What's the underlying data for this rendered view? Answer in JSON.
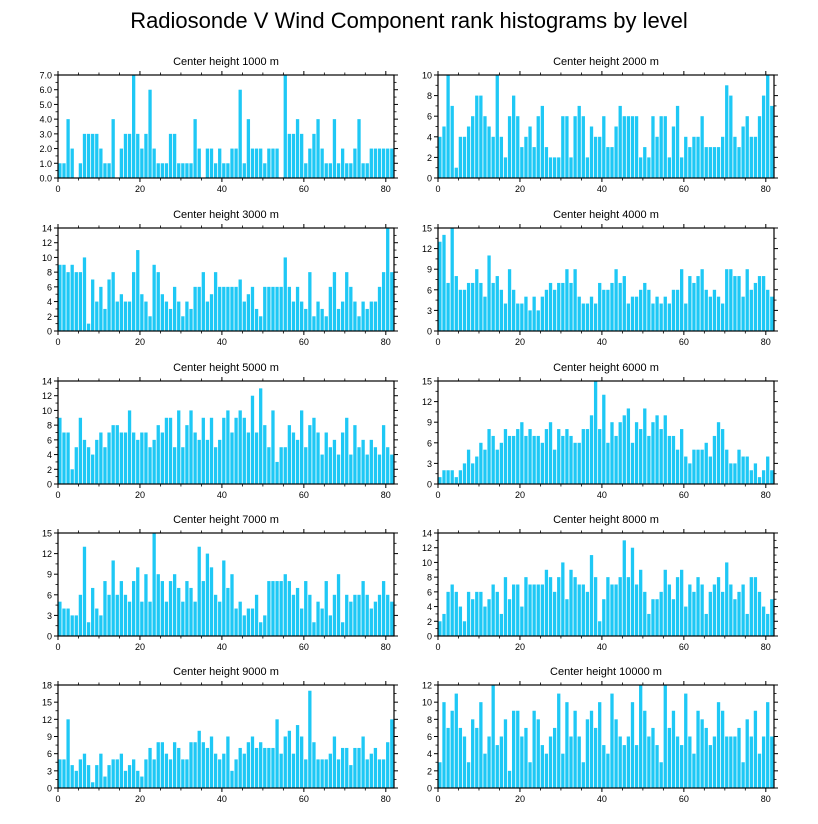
{
  "figure_title": "Radiosonde V Wind Component rank histograms by level",
  "bar_color": "#1ec8f5",
  "chart_data": [
    {
      "type": "bar",
      "title": "Center height 1000 m",
      "xlim": [
        0,
        82
      ],
      "ylim": [
        0,
        7
      ],
      "yticks": [
        0,
        1,
        2,
        3,
        4,
        5,
        6,
        7
      ],
      "ytick_labels": [
        "0.0",
        "1.0",
        "2.0",
        "3.0",
        "4.0",
        "5.0",
        "6.0",
        "7.0"
      ],
      "xticks": [
        0,
        20,
        40,
        60,
        80
      ],
      "xtick_labels": [
        "0",
        "20",
        "40",
        "60",
        "80"
      ],
      "values": [
        1,
        1,
        4,
        2,
        0,
        1,
        3,
        3,
        3,
        3,
        2,
        1,
        1,
        4,
        0,
        2,
        3,
        3,
        7,
        3,
        2,
        3,
        6,
        2,
        1,
        1,
        1,
        3,
        3,
        1,
        1,
        1,
        1,
        4,
        2,
        0,
        2,
        2,
        1,
        2,
        1,
        1,
        2,
        2,
        6,
        1,
        4,
        2,
        2,
        2,
        1,
        2,
        2,
        2,
        0,
        7,
        3,
        3,
        4,
        3,
        1,
        2,
        3,
        4,
        2,
        1,
        1,
        4,
        1,
        2,
        1,
        1,
        2,
        4,
        1,
        1,
        2,
        2,
        2,
        2,
        2,
        2
      ]
    },
    {
      "type": "bar",
      "title": "Center height 2000 m",
      "xlim": [
        0,
        82
      ],
      "ylim": [
        0,
        10
      ],
      "yticks": [
        0,
        2,
        4,
        6,
        8,
        10
      ],
      "ytick_labels": [
        "0",
        "2",
        "4",
        "6",
        "8",
        "10"
      ],
      "xticks": [
        0,
        20,
        40,
        60,
        80
      ],
      "xtick_labels": [
        "0",
        "20",
        "40",
        "60",
        "80"
      ],
      "values": [
        4,
        5,
        10,
        7,
        1,
        4,
        4,
        5,
        6,
        8,
        8,
        6,
        5,
        4,
        10,
        4,
        2,
        6,
        8,
        6,
        3,
        4,
        5,
        3,
        6,
        7,
        3,
        2,
        2,
        2,
        6,
        6,
        2,
        6,
        7,
        6,
        2,
        5,
        4,
        4,
        6,
        3,
        3,
        5,
        7,
        6,
        6,
        6,
        6,
        2,
        3,
        2,
        6,
        4,
        6,
        6,
        2,
        5,
        7,
        2,
        4,
        3,
        4,
        4,
        6,
        3,
        3,
        3,
        3,
        4,
        9,
        8,
        4,
        3,
        5,
        6,
        4,
        4,
        6,
        8,
        10,
        7
      ]
    },
    {
      "type": "bar",
      "title": "Center height 3000 m",
      "xlim": [
        0,
        82
      ],
      "ylim": [
        0,
        14
      ],
      "yticks": [
        0,
        2,
        4,
        6,
        8,
        10,
        12,
        14
      ],
      "ytick_labels": [
        "0",
        "2",
        "4",
        "6",
        "8",
        "10",
        "12",
        "14"
      ],
      "xticks": [
        0,
        20,
        40,
        60,
        80
      ],
      "xtick_labels": [
        "0",
        "20",
        "40",
        "60",
        "80"
      ],
      "values": [
        9,
        9,
        8,
        9,
        8,
        8,
        10,
        1,
        7,
        4,
        6,
        3,
        7,
        8,
        4,
        5,
        4,
        4,
        8,
        11,
        5,
        4,
        2,
        9,
        8,
        5,
        4,
        3,
        6,
        4,
        2,
        4,
        3,
        6,
        6,
        8,
        4,
        5,
        8,
        6,
        6,
        6,
        6,
        6,
        7,
        4,
        5,
        6,
        3,
        2,
        6,
        6,
        6,
        6,
        6,
        10,
        6,
        4,
        6,
        4,
        3,
        8,
        2,
        4,
        3,
        2,
        6,
        8,
        3,
        4,
        8,
        6,
        4,
        2,
        4,
        3,
        4,
        4,
        6,
        8,
        14,
        8
      ]
    },
    {
      "type": "bar",
      "title": "Center height 4000 m",
      "xlim": [
        0,
        82
      ],
      "ylim": [
        0,
        15
      ],
      "yticks": [
        0,
        3,
        6,
        9,
        12,
        15
      ],
      "ytick_labels": [
        "0",
        "3",
        "6",
        "9",
        "12",
        "15"
      ],
      "xticks": [
        0,
        20,
        40,
        60,
        80
      ],
      "xtick_labels": [
        "0",
        "20",
        "40",
        "60",
        "80"
      ],
      "values": [
        13,
        14,
        7,
        15,
        8,
        6,
        6,
        7,
        7,
        9,
        7,
        5,
        11,
        7,
        8,
        6,
        4,
        9,
        6,
        4,
        4,
        5,
        3,
        5,
        3,
        5,
        6,
        7,
        6,
        7,
        7,
        9,
        7,
        9,
        5,
        4,
        4,
        5,
        4,
        7,
        6,
        6,
        7,
        9,
        7,
        8,
        4,
        5,
        5,
        6,
        7,
        6,
        4,
        5,
        4,
        5,
        4,
        6,
        6,
        9,
        4,
        8,
        7,
        8,
        9,
        6,
        5,
        6,
        5,
        4,
        9,
        9,
        8,
        8,
        5,
        9,
        6,
        7,
        8,
        8,
        6,
        5
      ]
    },
    {
      "type": "bar",
      "title": "Center height 5000 m",
      "xlim": [
        0,
        82
      ],
      "ylim": [
        0,
        14
      ],
      "yticks": [
        0,
        2,
        4,
        6,
        8,
        10,
        12,
        14
      ],
      "ytick_labels": [
        "0",
        "2",
        "4",
        "6",
        "8",
        "10",
        "12",
        "14"
      ],
      "xticks": [
        0,
        20,
        40,
        60,
        80
      ],
      "xtick_labels": [
        "0",
        "20",
        "40",
        "60",
        "80"
      ],
      "values": [
        9,
        7,
        7,
        2,
        5,
        9,
        6,
        5,
        4,
        6,
        7,
        5,
        7,
        8,
        8,
        7,
        7,
        10,
        7,
        6,
        7,
        7,
        5,
        6,
        8,
        7,
        9,
        9,
        5,
        10,
        5,
        8,
        10,
        7,
        6,
        9,
        6,
        9,
        5,
        6,
        9,
        10,
        7,
        9,
        10,
        9,
        7,
        12,
        7,
        13,
        8,
        5,
        10,
        3,
        5,
        5,
        8,
        7,
        6,
        10,
        5,
        8,
        9,
        7,
        4,
        7,
        5,
        6,
        4,
        7,
        9,
        4,
        8,
        5,
        6,
        4,
        6,
        5,
        4,
        8,
        5,
        4
      ]
    },
    {
      "type": "bar",
      "title": "Center height 6000 m",
      "xlim": [
        0,
        82
      ],
      "ylim": [
        0,
        15
      ],
      "yticks": [
        0,
        3,
        6,
        9,
        12,
        15
      ],
      "ytick_labels": [
        "0",
        "3",
        "6",
        "9",
        "12",
        "15"
      ],
      "xticks": [
        0,
        20,
        40,
        60,
        80
      ],
      "xtick_labels": [
        "0",
        "20",
        "40",
        "60",
        "80"
      ],
      "values": [
        1,
        2,
        2,
        2,
        1,
        2,
        3,
        5,
        3,
        4,
        6,
        5,
        8,
        7,
        5,
        6,
        8,
        7,
        7,
        8,
        9,
        7,
        8,
        7,
        7,
        6,
        8,
        9,
        5,
        8,
        7,
        8,
        7,
        6,
        6,
        8,
        8,
        10,
        15,
        8,
        13,
        6,
        9,
        7,
        9,
        10,
        11,
        6,
        9,
        8,
        11,
        7,
        9,
        10,
        8,
        10,
        7,
        7,
        5,
        8,
        4,
        3,
        5,
        5,
        5,
        6,
        4,
        7,
        9,
        8,
        5,
        3,
        3,
        5,
        4,
        4,
        2,
        3,
        1,
        2,
        4,
        2
      ]
    },
    {
      "type": "bar",
      "title": "Center height 7000 m",
      "xlim": [
        0,
        82
      ],
      "ylim": [
        0,
        15
      ],
      "yticks": [
        0,
        3,
        6,
        9,
        12,
        15
      ],
      "ytick_labels": [
        "0",
        "3",
        "6",
        "9",
        "12",
        "15"
      ],
      "xticks": [
        0,
        20,
        40,
        60,
        80
      ],
      "xtick_labels": [
        "0",
        "20",
        "40",
        "60",
        "80"
      ],
      "values": [
        5,
        4,
        4,
        3,
        3,
        6,
        13,
        2,
        7,
        4,
        3,
        8,
        6,
        11,
        6,
        8,
        6,
        5,
        8,
        10,
        5,
        9,
        5,
        15,
        9,
        8,
        5,
        8,
        9,
        7,
        5,
        8,
        7,
        5,
        13,
        8,
        12,
        10,
        6,
        5,
        11,
        7,
        9,
        4,
        5,
        3,
        4,
        4,
        6,
        2,
        3,
        8,
        8,
        8,
        8,
        9,
        8,
        6,
        7,
        4,
        8,
        6,
        2,
        5,
        4,
        8,
        3,
        6,
        9,
        2,
        6,
        5,
        6,
        6,
        8,
        6,
        4,
        5,
        6,
        8,
        6,
        5
      ]
    },
    {
      "type": "bar",
      "title": "Center height 8000 m",
      "xlim": [
        0,
        82
      ],
      "ylim": [
        0,
        14
      ],
      "yticks": [
        0,
        2,
        4,
        6,
        8,
        10,
        12,
        14
      ],
      "ytick_labels": [
        "0",
        "2",
        "4",
        "6",
        "8",
        "10",
        "12",
        "14"
      ],
      "xticks": [
        0,
        20,
        40,
        60,
        80
      ],
      "xtick_labels": [
        "0",
        "20",
        "40",
        "60",
        "80"
      ],
      "values": [
        2,
        3,
        6,
        7,
        6,
        4,
        2,
        6,
        5,
        6,
        6,
        4,
        5,
        7,
        6,
        3,
        8,
        5,
        7,
        7,
        4,
        8,
        7,
        7,
        7,
        7,
        9,
        8,
        6,
        8,
        10,
        5,
        9,
        8,
        7,
        7,
        6,
        11,
        8,
        2,
        5,
        8,
        7,
        7,
        8,
        13,
        8,
        12,
        7,
        9,
        6,
        3,
        5,
        5,
        6,
        9,
        7,
        5,
        8,
        9,
        4,
        7,
        6,
        8,
        7,
        3,
        6,
        7,
        8,
        6,
        10,
        7,
        5,
        6,
        7,
        3,
        8,
        8,
        6,
        4,
        3,
        5
      ]
    },
    {
      "type": "bar",
      "title": "Center height 9000 m",
      "xlim": [
        0,
        82
      ],
      "ylim": [
        0,
        18
      ],
      "yticks": [
        0,
        3,
        6,
        9,
        12,
        15,
        18
      ],
      "ytick_labels": [
        "0",
        "3",
        "6",
        "9",
        "12",
        "15",
        "18"
      ],
      "xticks": [
        0,
        20,
        40,
        60,
        80
      ],
      "xtick_labels": [
        "0",
        "20",
        "40",
        "60",
        "80"
      ],
      "values": [
        5,
        5,
        12,
        4,
        3,
        5,
        6,
        4,
        1,
        4,
        6,
        2,
        4,
        5,
        5,
        6,
        3,
        4,
        5,
        3,
        2,
        5,
        7,
        5,
        8,
        8,
        6,
        5,
        8,
        7,
        5,
        5,
        8,
        8,
        10,
        8,
        7,
        9,
        6,
        5,
        6,
        9,
        3,
        5,
        7,
        6,
        8,
        9,
        7,
        8,
        7,
        7,
        7,
        12,
        6,
        9,
        10,
        6,
        11,
        9,
        5,
        17,
        8,
        5,
        5,
        5,
        6,
        9,
        5,
        7,
        7,
        4,
        7,
        7,
        9,
        5,
        6,
        7,
        5,
        5,
        8,
        12
      ]
    },
    {
      "type": "bar",
      "title": "Center height 10000 m",
      "xlim": [
        0,
        82
      ],
      "ylim": [
        0,
        12
      ],
      "yticks": [
        0,
        2,
        4,
        6,
        8,
        10,
        12
      ],
      "ytick_labels": [
        "0",
        "2",
        "4",
        "6",
        "8",
        "10",
        "12"
      ],
      "xticks": [
        0,
        20,
        40,
        60,
        80
      ],
      "xtick_labels": [
        "0",
        "20",
        "40",
        "60",
        "80"
      ],
      "values": [
        3,
        10,
        7,
        9,
        11,
        7,
        6,
        3,
        8,
        7,
        10,
        4,
        6,
        12,
        5,
        6,
        8,
        2,
        9,
        9,
        6,
        7,
        3,
        9,
        8,
        5,
        4,
        6,
        7,
        11,
        4,
        10,
        6,
        9,
        6,
        3,
        8,
        9,
        7,
        10,
        5,
        4,
        11,
        8,
        6,
        5,
        6,
        10,
        5,
        12,
        9,
        6,
        7,
        5,
        3,
        12,
        7,
        9,
        6,
        5,
        11,
        6,
        4,
        9,
        8,
        7,
        5,
        6,
        10,
        9,
        6,
        6,
        6,
        7,
        3,
        8,
        6,
        9,
        4,
        6,
        10,
        6
      ]
    }
  ]
}
